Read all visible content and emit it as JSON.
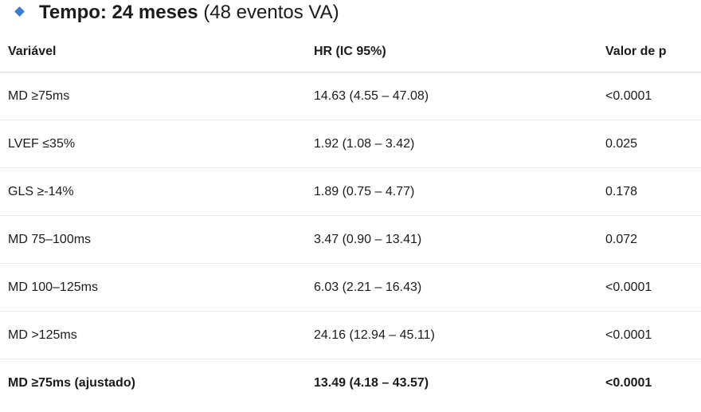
{
  "heading": {
    "bold": "Tempo: 24 meses",
    "rest": "(48 eventos VA)",
    "icon": "diamond-icon",
    "icon_color": "#3a7bd5"
  },
  "table": {
    "headers": [
      "Variável",
      "HR (IC 95%)",
      "Valor de p"
    ],
    "rows": [
      {
        "variable": "MD ≥75ms",
        "hr": "14.63 (4.55 – 47.08)",
        "p": "<0.0001",
        "bold": false
      },
      {
        "variable": "LVEF ≤35%",
        "hr": "1.92 (1.08 – 3.42)",
        "p": "0.025",
        "bold": false
      },
      {
        "variable": "GLS ≥-14%",
        "hr": "1.89 (0.75 – 4.77)",
        "p": "0.178",
        "bold": false
      },
      {
        "variable": "MD 75–100ms",
        "hr": "3.47 (0.90 – 13.41)",
        "p": "0.072",
        "bold": false
      },
      {
        "variable": "MD 100–125ms",
        "hr": "6.03 (2.21 – 16.43)",
        "p": "<0.0001",
        "bold": false
      },
      {
        "variable": "MD >125ms",
        "hr": "24.16 (12.94 – 45.11)",
        "p": "<0.0001",
        "bold": false
      },
      {
        "variable": "MD ≥75ms (ajustado)",
        "hr": "13.49 (4.18 – 43.57)",
        "p": "<0.0001",
        "bold": true
      }
    ]
  }
}
